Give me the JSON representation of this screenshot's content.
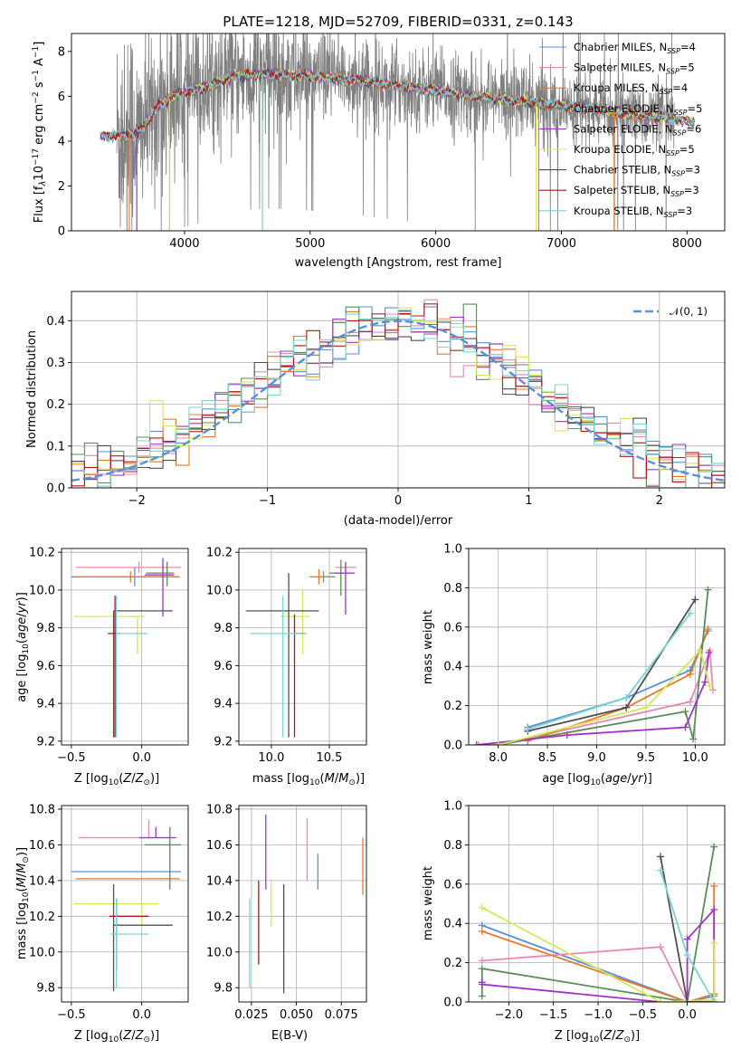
{
  "colors": {
    "Chabrier MILES": "#5b8fd6",
    "Salpeter MILES": "#e887b8",
    "Kroupa MILES": "#e8782a",
    "Chabrier ELODIE": "#5a8c5a",
    "Salpeter ELODIE": "#a332c8",
    "Kroupa ELODIE": "#d6e65a",
    "Chabrier STELIB": "#505050",
    "Salpeter STELIB": "#b01818",
    "Kroupa STELIB": "#7ad4d4",
    "observed": "#808080",
    "normal": "#5b8fd6"
  },
  "chart_data": [
    {
      "id": "spectrum",
      "type": "line",
      "title": "PLATE=1218, MJD=52709, FIBERID=0331, z=0.143",
      "xlabel": "wavelength [Angstrom, rest frame]",
      "ylabel_parts": [
        "Flux [f",
        "λ",
        "10",
        "−17",
        " erg cm",
        "−2",
        " s",
        "−1",
        " A",
        "−1",
        "]"
      ],
      "xlim": [
        3100,
        8300
      ],
      "ylim": [
        0,
        8.8
      ],
      "xticks": [
        4000,
        5000,
        6000,
        7000,
        8000
      ],
      "yticks": [
        0,
        2,
        4,
        6,
        8
      ],
      "legend": [
        {
          "name": "Chabrier MILES, N",
          "sub": "SSP",
          "tail": "=4"
        },
        {
          "name": "Salpeter MILES, N",
          "sub": "SSP",
          "tail": "=5"
        },
        {
          "name": "Kroupa MILES, N",
          "sub": "SSP",
          "tail": "=4"
        },
        {
          "name": "Chabrier ELODIE, N",
          "sub": "SSP",
          "tail": "=5"
        },
        {
          "name": "Salpeter ELODIE, N",
          "sub": "SSP",
          "tail": "=6"
        },
        {
          "name": "Kroupa ELODIE, N",
          "sub": "SSP",
          "tail": "=5"
        },
        {
          "name": "Chabrier STELIB, N",
          "sub": "SSP",
          "tail": "=3"
        },
        {
          "name": "Salpeter STELIB, N",
          "sub": "SSP",
          "tail": "=3"
        },
        {
          "name": "Kroupa STELIB, N",
          "sub": "SSP",
          "tail": "=3"
        }
      ],
      "continuum": [
        [
          3330,
          4.2
        ],
        [
          3550,
          4.3
        ],
        [
          3650,
          4.5
        ],
        [
          3800,
          5.6
        ],
        [
          3950,
          6.1
        ],
        [
          4100,
          6.3
        ],
        [
          4400,
          6.9
        ],
        [
          4700,
          7.0
        ],
        [
          5000,
          6.9
        ],
        [
          5400,
          6.7
        ],
        [
          5800,
          6.4
        ],
        [
          6200,
          6.1
        ],
        [
          6600,
          5.8
        ],
        [
          7000,
          5.6
        ],
        [
          7400,
          5.3
        ],
        [
          7800,
          5.05
        ],
        [
          8050,
          4.85
        ]
      ],
      "observed_range": [
        3460,
        7900
      ],
      "model_range": [
        3330,
        8060
      ]
    },
    {
      "id": "residuals",
      "type": "histogram",
      "xlabel": "(data-model)/error",
      "ylabel": "Normed distribution",
      "xlim": [
        -2.5,
        2.5
      ],
      "ylim": [
        0,
        0.47
      ],
      "xticks": [
        -2,
        -1,
        0,
        1,
        2
      ],
      "yticks": [
        0.0,
        0.1,
        0.2,
        0.3,
        0.4
      ],
      "legend": "𝒩(0, 1)",
      "bin_width": 0.1,
      "bin_start": -2.5
    },
    {
      "id": "age_vs_z",
      "type": "errorbar",
      "xlabel": "Z [log10(Z/Z☉)]",
      "ylabel": "age [log10(age/yr)]",
      "xlim": [
        -0.57,
        0.33
      ],
      "ylim": [
        9.18,
        10.22
      ],
      "xticks": [
        -0.5,
        0.0
      ],
      "yticks": [
        9.2,
        9.4,
        9.6,
        9.8,
        10.0,
        10.2
      ],
      "points": [
        {
          "s": "Chabrier MILES",
          "x": -0.05,
          "xe": [
            0.45,
            0.3
          ],
          "y": 10.07,
          "ye": [
            0.05,
            0.05
          ]
        },
        {
          "s": "Salpeter MILES",
          "x": -0.02,
          "xe": [
            0.45,
            0.3
          ],
          "y": 10.12,
          "ye": [
            0.03,
            0.03
          ]
        },
        {
          "s": "Kroupa MILES",
          "x": -0.08,
          "xe": [
            0.4,
            0.35
          ],
          "y": 10.07,
          "ye": [
            0.03,
            0.03
          ]
        },
        {
          "s": "Chabrier ELODIE",
          "x": 0.18,
          "xe": [
            0.15,
            0.05
          ],
          "y": 10.09,
          "ye": [
            0.07,
            0.06
          ]
        },
        {
          "s": "Salpeter ELODIE",
          "x": 0.15,
          "xe": [
            0.13,
            0.08
          ],
          "y": 10.08,
          "ye": [
            0.22,
            0.09
          ]
        },
        {
          "s": "Kroupa ELODIE",
          "x": -0.03,
          "xe": [
            0.45,
            0.05
          ],
          "y": 9.86,
          "ye": [
            0.2,
            0.0
          ]
        },
        {
          "s": "Chabrier STELIB",
          "x": -0.2,
          "xe": [
            0.0,
            0.42
          ],
          "y": 9.89,
          "ye": [
            0.67,
            0.0
          ]
        },
        {
          "s": "Salpeter STELIB",
          "x": -0.19,
          "xe": [
            0.05,
            0.04
          ],
          "y": 9.77,
          "ye": [
            0.55,
            0.2
          ]
        },
        {
          "s": "Kroupa STELIB",
          "x": -0.18,
          "xe": [
            0.0,
            0.22
          ],
          "y": 9.77,
          "ye": [
            0.55,
            0.2
          ]
        }
      ]
    },
    {
      "id": "age_vs_mass",
      "type": "errorbar",
      "xlabel": "mass [log10(M/M☉)]",
      "ylabel": "",
      "xlim": [
        9.72,
        10.82
      ],
      "ylim": [
        9.18,
        10.22
      ],
      "xticks": [
        10.0,
        10.5
      ],
      "yticks": [
        9.2,
        9.4,
        9.6,
        9.8,
        10.0,
        10.2
      ],
      "points": [
        {
          "s": "Chabrier MILES",
          "x": 10.45,
          "xe": [
            0.05,
            0.1
          ],
          "y": 10.07,
          "ye": [
            0.03,
            0.03
          ]
        },
        {
          "s": "Salpeter MILES",
          "x": 10.64,
          "xe": [
            0.09,
            0.09
          ],
          "y": 10.12,
          "ye": [
            0.02,
            0.02
          ]
        },
        {
          "s": "Kroupa MILES",
          "x": 10.41,
          "xe": [
            0.08,
            0.09
          ],
          "y": 10.07,
          "ye": [
            0.04,
            0.04
          ]
        },
        {
          "s": "Chabrier ELODIE",
          "x": 10.6,
          "xe": [
            0.1,
            0.1
          ],
          "y": 10.09,
          "ye": [
            0.12,
            0.07
          ]
        },
        {
          "s": "Salpeter ELODIE",
          "x": 10.64,
          "xe": [
            0.1,
            0.08
          ],
          "y": 10.09,
          "ye": [
            0.22,
            0.06
          ]
        },
        {
          "s": "Kroupa ELODIE",
          "x": 10.27,
          "xe": [
            0.19,
            0.06
          ],
          "y": 9.86,
          "ye": [
            0.2,
            0.14
          ]
        },
        {
          "s": "Chabrier STELIB",
          "x": 10.15,
          "xe": [
            0.37,
            0.26
          ],
          "y": 9.89,
          "ye": [
            0.67,
            0.2
          ]
        },
        {
          "s": "Salpeter STELIB",
          "x": 10.2,
          "xe": [
            0.0,
            0.1
          ],
          "y": 9.77,
          "ye": [
            0.55,
            0.1
          ]
        },
        {
          "s": "Kroupa STELIB",
          "x": 10.1,
          "xe": [
            0.28,
            0.2
          ],
          "y": 9.77,
          "ye": [
            0.55,
            0.2
          ]
        }
      ]
    },
    {
      "id": "mass_weight_vs_age",
      "type": "line",
      "xlabel": "age [log10(age/yr)]",
      "ylabel": "mass weight",
      "xlim": [
        7.7,
        10.3
      ],
      "ylim": [
        0,
        1.0
      ],
      "xticks": [
        8.0,
        8.5,
        9.0,
        9.5,
        10.0
      ],
      "yticks": [
        0.0,
        0.2,
        0.4,
        0.6,
        0.8,
        1.0
      ],
      "series": [
        {
          "s": "Chabrier MILES",
          "x": [
            8.3,
            9.3,
            9.95,
            10.13
          ],
          "y": [
            0.09,
            0.24,
            0.38,
            0.58
          ]
        },
        {
          "s": "Salpeter MILES",
          "x": [
            7.8,
            8.0,
            9.95,
            10.15,
            10.18
          ],
          "y": [
            0.0,
            0.0,
            0.22,
            0.48,
            0.28
          ]
        },
        {
          "s": "Kroupa MILES",
          "x": [
            8.3,
            9.3,
            9.95,
            10.13
          ],
          "y": [
            0.02,
            0.19,
            0.36,
            0.59
          ]
        },
        {
          "s": "Chabrier ELODIE",
          "x": [
            8.0,
            9.9,
            9.98,
            10.13
          ],
          "y": [
            0.0,
            0.17,
            0.03,
            0.79
          ]
        },
        {
          "s": "Salpeter ELODIE",
          "x": [
            7.78,
            8.7,
            9.9,
            10.1,
            10.14
          ],
          "y": [
            0.0,
            0.05,
            0.09,
            0.32,
            0.47
          ]
        },
        {
          "s": "Kroupa ELODIE",
          "x": [
            8.0,
            9.5,
            10.05,
            10.15
          ],
          "y": [
            0.0,
            0.19,
            0.48,
            0.3
          ]
        },
        {
          "s": "Chabrier STELIB",
          "x": [
            8.3,
            9.3,
            10.0
          ],
          "y": [
            0.07,
            0.19,
            0.74
          ]
        },
        {
          "s": "Kroupa STELIB",
          "x": [
            8.3,
            9.3,
            9.95
          ],
          "y": [
            0.08,
            0.24,
            0.67
          ]
        }
      ]
    },
    {
      "id": "mass_vs_z",
      "type": "errorbar",
      "xlabel": "Z [log10(Z/Z☉)]",
      "ylabel": "mass [log10(M/M☉)]",
      "xlim": [
        -0.57,
        0.33
      ],
      "ylim": [
        9.72,
        10.82
      ],
      "xticks": [
        -0.5,
        0.0
      ],
      "yticks": [
        9.8,
        10.0,
        10.2,
        10.4,
        10.6,
        10.8
      ],
      "points": [
        {
          "s": "Chabrier MILES",
          "x": -0.1,
          "xe": [
            0.4,
            0.38
          ],
          "y": 10.45,
          "ye": [
            0.0,
            0.0
          ]
        },
        {
          "s": "Salpeter MILES",
          "x": 0.05,
          "xe": [
            0.5,
            0.2
          ],
          "y": 10.64,
          "ye": [
            0.0,
            0.1
          ]
        },
        {
          "s": "Kroupa MILES",
          "x": -0.05,
          "xe": [
            0.42,
            0.32
          ],
          "y": 10.41,
          "ye": [
            0.0,
            0.0
          ]
        },
        {
          "s": "Chabrier ELODIE",
          "x": 0.2,
          "xe": [
            0.18,
            0.08
          ],
          "y": 10.6,
          "ye": [
            0.25,
            0.1
          ]
        },
        {
          "s": "Salpeter ELODIE",
          "x": 0.1,
          "xe": [
            0.12,
            0.14
          ],
          "y": 10.64,
          "ye": [
            0.0,
            0.06
          ]
        },
        {
          "s": "Kroupa ELODIE",
          "x": 0.0,
          "xe": [
            0.48,
            0.12
          ],
          "y": 10.27,
          "ye": [
            0.12,
            0.0
          ]
        },
        {
          "s": "Chabrier STELIB",
          "x": -0.2,
          "xe": [
            0.0,
            0.42
          ],
          "y": 10.15,
          "ye": [
            0.37,
            0.23
          ]
        },
        {
          "s": "Salpeter STELIB",
          "x": -0.18,
          "xe": [
            0.05,
            0.23
          ],
          "y": 10.2,
          "ye": [
            0.3,
            0.1
          ]
        },
        {
          "s": "Kroupa STELIB",
          "x": -0.18,
          "xe": [
            0.04,
            0.23
          ],
          "y": 10.1,
          "ye": [
            0.3,
            0.2
          ]
        }
      ]
    },
    {
      "id": "mass_vs_ebv",
      "type": "errorbar",
      "xlabel": "E(B-V)",
      "ylabel": "",
      "xlim": [
        0.018,
        0.089
      ],
      "ylim": [
        9.72,
        10.82
      ],
      "xticks": [
        0.025,
        0.05,
        0.075
      ],
      "yticks": [
        9.8,
        10.0,
        10.2,
        10.4,
        10.6,
        10.8
      ],
      "points": [
        {
          "s": "Chabrier MILES",
          "x": 0.062,
          "xe": [
            0.0,
            0.0
          ],
          "y": 10.45,
          "ye": [
            0.1,
            0.1
          ]
        },
        {
          "s": "Salpeter MILES",
          "x": 0.056,
          "xe": [
            0.0,
            0.0
          ],
          "y": 10.55,
          "ye": [
            0.15,
            0.2
          ]
        },
        {
          "s": "Kroupa MILES",
          "x": 0.087,
          "xe": [
            0.0,
            0.0
          ],
          "y": 10.48,
          "ye": [
            0.16,
            0.16
          ]
        },
        {
          "s": "Salpeter ELODIE",
          "x": 0.033,
          "xe": [
            0.0,
            0.0
          ],
          "y": 10.55,
          "ye": [
            0.2,
            0.22
          ]
        },
        {
          "s": "Kroupa ELODIE",
          "x": 0.036,
          "xe": [
            0.0,
            0.0
          ],
          "y": 10.27,
          "ye": [
            0.13,
            0.14
          ]
        },
        {
          "s": "Chabrier STELIB",
          "x": 0.043,
          "xe": [
            0.0,
            0.0
          ],
          "y": 10.15,
          "ye": [
            0.38,
            0.23
          ]
        },
        {
          "s": "Salpeter STELIB",
          "x": 0.029,
          "xe": [
            0.0,
            0.0
          ],
          "y": 10.15,
          "ye": [
            0.22,
            0.25
          ]
        },
        {
          "s": "Kroupa STELIB",
          "x": 0.024,
          "xe": [
            0.0,
            0.0
          ],
          "y": 10.05,
          "ye": [
            0.25,
            0.25
          ]
        }
      ]
    },
    {
      "id": "mass_weight_vs_z",
      "type": "line",
      "xlabel": "Z [log10(Z/Z☉)]",
      "ylabel": "mass weight",
      "xlim": [
        -2.45,
        0.42
      ],
      "ylim": [
        0,
        1.0
      ],
      "xticks": [
        -2.0,
        -1.5,
        -1.0,
        -0.5,
        0.0
      ],
      "yticks": [
        0.0,
        0.2,
        0.4,
        0.6,
        0.8,
        1.0
      ],
      "series": [
        {
          "s": "Chabrier MILES",
          "x": [
            -2.3,
            0.0,
            0.3
          ],
          "y": [
            0.39,
            0.0,
            0.03
          ]
        },
        {
          "s": "Salpeter MILES",
          "x": [
            -2.3,
            -0.3,
            0.0,
            0.3
          ],
          "y": [
            0.21,
            0.28,
            0.0,
            0.0
          ]
        },
        {
          "s": "Kroupa MILES",
          "x": [
            -2.3,
            0.0,
            0.3,
            0.3
          ],
          "y": [
            0.36,
            0.0,
            0.04,
            0.59
          ]
        },
        {
          "s": "Chabrier ELODIE",
          "x": [
            -2.3,
            -2.3,
            0.0,
            0.3
          ],
          "y": [
            0.03,
            0.17,
            0.0,
            0.79
          ]
        },
        {
          "s": "Salpeter ELODIE",
          "x": [
            -2.3,
            -2.3,
            -0.3,
            0.0,
            0.0,
            0.3,
            0.3
          ],
          "y": [
            0.1,
            0.09,
            0.0,
            0.0,
            0.32,
            0.47,
            0.0
          ]
        },
        {
          "s": "Kroupa ELODIE",
          "x": [
            -2.3,
            -0.3,
            0.3,
            0.3
          ],
          "y": [
            0.48,
            0.0,
            0.01,
            0.3
          ]
        },
        {
          "s": "Chabrier STELIB",
          "x": [
            -0.3,
            0.0,
            0.3
          ],
          "y": [
            0.74,
            0.0,
            0.0
          ]
        },
        {
          "s": "Kroupa STELIB",
          "x": [
            -0.3,
            0.0,
            0.3
          ],
          "y": [
            0.67,
            0.24,
            0.0
          ]
        }
      ]
    }
  ]
}
